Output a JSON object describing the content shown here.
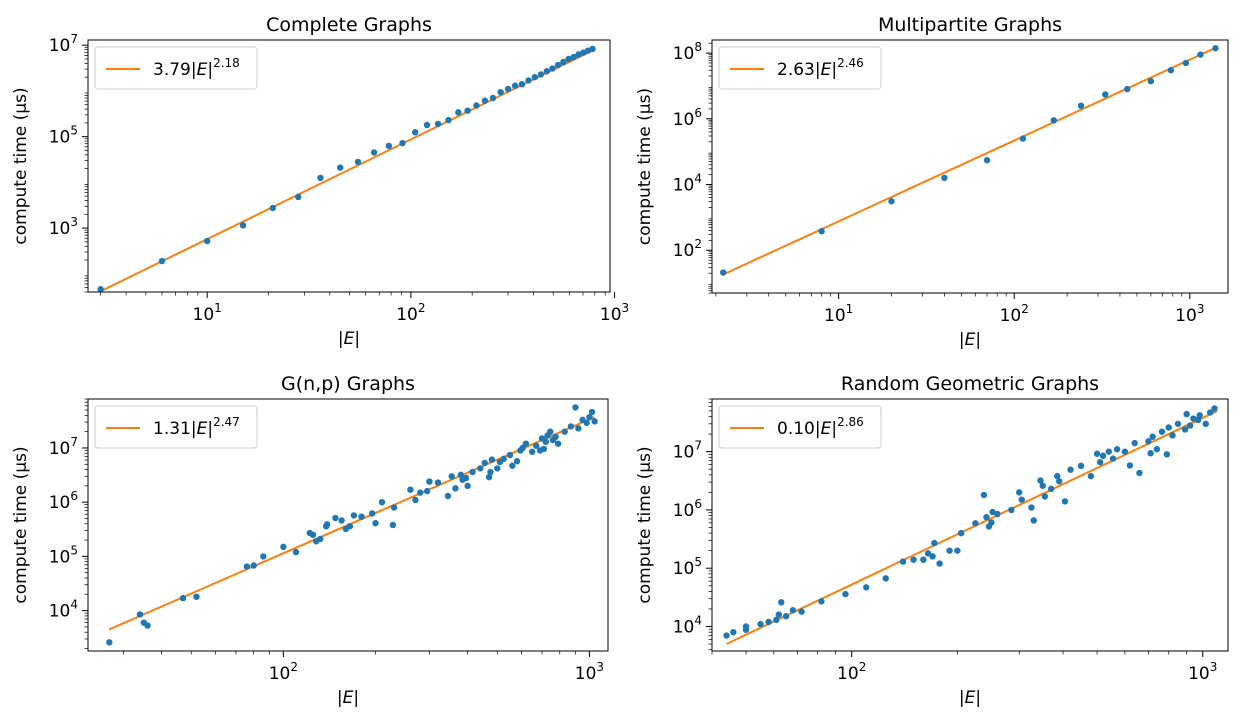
{
  "colors": {
    "points": "#1f77b4",
    "fit": "#ff7f0e",
    "background": "#ffffff",
    "axes": "#000000"
  },
  "chart_data": [
    {
      "type": "scatter",
      "title": "Complete Graphs",
      "xlabel": "|E|",
      "ylabel": "compute time (μs)",
      "xscale": "log",
      "yscale": "log",
      "xlim": [
        2.6,
        950
      ],
      "ylim": [
        40,
        13000000
      ],
      "xticks": [
        {
          "v": 10,
          "m": "10",
          "e": "1"
        },
        {
          "v": 100,
          "m": "10",
          "e": "2"
        },
        {
          "v": 1000,
          "m": "10",
          "e": "3"
        }
      ],
      "yticks": [
        {
          "v": 1000,
          "m": "10",
          "e": "3"
        },
        {
          "v": 100000,
          "m": "10",
          "e": "5"
        },
        {
          "v": 10000000,
          "m": "10",
          "e": "7"
        }
      ],
      "legend_position": "top-left",
      "fit": {
        "label_coef": "3.79|",
        "label_var": "E",
        "label_exp": "2.18",
        "a": 3.79,
        "b": 2.18,
        "x_range": [
          3,
          780
        ]
      },
      "points": [
        [
          3,
          46
        ],
        [
          6,
          190
        ],
        [
          10,
          520
        ],
        [
          15,
          1150
        ],
        [
          21,
          2750
        ],
        [
          28,
          4800
        ],
        [
          36,
          12500
        ],
        [
          45,
          21000
        ],
        [
          55,
          28000
        ],
        [
          66,
          45000
        ],
        [
          78,
          63000
        ],
        [
          91,
          72000
        ],
        [
          105,
          125000
        ],
        [
          120,
          180000
        ],
        [
          136,
          190000
        ],
        [
          153,
          230000
        ],
        [
          171,
          340000
        ],
        [
          190,
          370000
        ],
        [
          210,
          480000
        ],
        [
          231,
          610000
        ],
        [
          253,
          700000
        ],
        [
          276,
          940000
        ],
        [
          300,
          1100000
        ],
        [
          325,
          1300000
        ],
        [
          351,
          1400000
        ],
        [
          378,
          1700000
        ],
        [
          406,
          2000000
        ],
        [
          435,
          2300000
        ],
        [
          465,
          2700000
        ],
        [
          496,
          3100000
        ],
        [
          528,
          3700000
        ],
        [
          561,
          4300000
        ],
        [
          595,
          5000000
        ],
        [
          630,
          5500000
        ],
        [
          666,
          6300000
        ],
        [
          703,
          6900000
        ],
        [
          741,
          7600000
        ],
        [
          780,
          8300000
        ]
      ]
    },
    {
      "type": "scatter",
      "title": "Multipartite Graphs",
      "xlabel": "|E|",
      "ylabel": "compute time (μs)",
      "xscale": "log",
      "yscale": "log",
      "xlim": [
        1.9,
        1650
      ],
      "ylim": [
        5,
        250000000
      ],
      "xticks": [
        {
          "v": 10,
          "m": "10",
          "e": "1"
        },
        {
          "v": 100,
          "m": "10",
          "e": "2"
        },
        {
          "v": 1000,
          "m": "10",
          "e": "3"
        }
      ],
      "yticks": [
        {
          "v": 100,
          "m": "10",
          "e": "2"
        },
        {
          "v": 10000,
          "m": "10",
          "e": "4"
        },
        {
          "v": 1000000,
          "m": "10",
          "e": "6"
        },
        {
          "v": 100000000,
          "m": "10",
          "e": "8"
        }
      ],
      "legend_position": "top-left",
      "fit": {
        "label_coef": "2.63|",
        "label_var": "E",
        "label_exp": "2.46",
        "a": 2.63,
        "b": 2.46,
        "x_range": [
          2.2,
          1400
        ]
      },
      "points": [
        [
          2.2,
          21
        ],
        [
          8,
          380
        ],
        [
          20,
          3100
        ],
        [
          40,
          16000
        ],
        [
          70,
          55000
        ],
        [
          112,
          250000
        ],
        [
          168,
          900000
        ],
        [
          240,
          2500000
        ],
        [
          330,
          5500000
        ],
        [
          440,
          8000000
        ],
        [
          600,
          14000000
        ],
        [
          780,
          30000000
        ],
        [
          950,
          50000000
        ],
        [
          1150,
          90000000
        ],
        [
          1400,
          140000000
        ]
      ]
    },
    {
      "type": "scatter",
      "title": "G(n,p) Graphs",
      "xlabel": "|E|",
      "ylabel": "compute time (μs)",
      "xscale": "log",
      "yscale": "log",
      "xlim": [
        23,
        1150
      ],
      "ylim": [
        1800,
        80000000
      ],
      "xticks": [
        {
          "v": 100,
          "m": "10",
          "e": "2"
        },
        {
          "v": 1000,
          "m": "10",
          "e": "3"
        }
      ],
      "yticks": [
        {
          "v": 10000,
          "m": "10",
          "e": "4"
        },
        {
          "v": 100000,
          "m": "10",
          "e": "5"
        },
        {
          "v": 1000000,
          "m": "10",
          "e": "6"
        },
        {
          "v": 10000000,
          "m": "10",
          "e": "7"
        }
      ],
      "legend_position": "top-left",
      "fit": {
        "label_coef": "1.31|",
        "label_var": "E",
        "label_exp": "2.47",
        "a": 1.31,
        "b": 2.47,
        "x_range": [
          27,
          1040
        ]
      },
      "points": [
        [
          27,
          2600
        ],
        [
          34,
          8500
        ],
        [
          35,
          6000
        ],
        [
          36,
          5300
        ],
        [
          47,
          17000
        ],
        [
          52,
          18000
        ],
        [
          76,
          65000
        ],
        [
          80,
          68000
        ],
        [
          86,
          100000
        ],
        [
          100,
          150000
        ],
        [
          110,
          120000
        ],
        [
          122,
          270000
        ],
        [
          125,
          250000
        ],
        [
          128,
          190000
        ],
        [
          132,
          210000
        ],
        [
          138,
          360000
        ],
        [
          139,
          390000
        ],
        [
          148,
          510000
        ],
        [
          155,
          460000
        ],
        [
          160,
          320000
        ],
        [
          165,
          360000
        ],
        [
          170,
          570000
        ],
        [
          180,
          540000
        ],
        [
          195,
          620000
        ],
        [
          200,
          410000
        ],
        [
          210,
          1000000
        ],
        [
          228,
          380000
        ],
        [
          230,
          800000
        ],
        [
          260,
          1700000
        ],
        [
          270,
          1100000
        ],
        [
          280,
          1500000
        ],
        [
          295,
          1600000
        ],
        [
          300,
          2400000
        ],
        [
          320,
          2300000
        ],
        [
          345,
          1300000
        ],
        [
          355,
          3000000
        ],
        [
          365,
          1800000
        ],
        [
          380,
          3200000
        ],
        [
          385,
          2600000
        ],
        [
          395,
          2800000
        ],
        [
          400,
          2000000
        ],
        [
          415,
          3600000
        ],
        [
          440,
          4200000
        ],
        [
          455,
          5300000
        ],
        [
          470,
          2900000
        ],
        [
          475,
          3600000
        ],
        [
          480,
          6100000
        ],
        [
          500,
          4200000
        ],
        [
          510,
          5500000
        ],
        [
          525,
          6300000
        ],
        [
          550,
          7400000
        ],
        [
          560,
          4700000
        ],
        [
          580,
          5700000
        ],
        [
          595,
          9000000
        ],
        [
          605,
          10000000
        ],
        [
          620,
          12000000
        ],
        [
          650,
          8500000
        ],
        [
          670,
          11000000
        ],
        [
          690,
          9000000
        ],
        [
          700,
          15000000
        ],
        [
          710,
          9600000
        ],
        [
          720,
          13000000
        ],
        [
          730,
          17000000
        ],
        [
          745,
          20000000
        ],
        [
          760,
          14000000
        ],
        [
          775,
          16000000
        ],
        [
          790,
          12000000
        ],
        [
          830,
          20000000
        ],
        [
          870,
          25000000
        ],
        [
          900,
          56000000
        ],
        [
          920,
          23000000
        ],
        [
          950,
          33000000
        ],
        [
          980,
          29000000
        ],
        [
          1000,
          37000000
        ],
        [
          1020,
          46000000
        ],
        [
          1040,
          31000000
        ]
      ]
    },
    {
      "type": "scatter",
      "title": "Random Geometric Graphs",
      "xlabel": "|E|",
      "ylabel": "compute time (μs)",
      "xscale": "log",
      "yscale": "log",
      "xlim": [
        40,
        1180
      ],
      "ylim": [
        3800,
        80000000
      ],
      "xticks": [
        {
          "v": 100,
          "m": "10",
          "e": "2"
        },
        {
          "v": 1000,
          "m": "10",
          "e": "3"
        }
      ],
      "yticks": [
        {
          "v": 10000,
          "m": "10",
          "e": "4"
        },
        {
          "v": 100000,
          "m": "10",
          "e": "5"
        },
        {
          "v": 1000000,
          "m": "10",
          "e": "6"
        },
        {
          "v": 10000000,
          "m": "10",
          "e": "7"
        }
      ],
      "legend_position": "top-left",
      "fit": {
        "label_coef": "0.10|",
        "label_var": "E",
        "label_exp": "2.86",
        "a": 0.1,
        "b": 2.86,
        "x_range": [
          44,
          1100
        ]
      },
      "points": [
        [
          44,
          7000
        ],
        [
          46,
          8000
        ],
        [
          50,
          10000
        ],
        [
          50,
          8800
        ],
        [
          55,
          11000
        ],
        [
          58,
          12000
        ],
        [
          61,
          13000
        ],
        [
          62,
          16000
        ],
        [
          63,
          26000
        ],
        [
          65,
          15000
        ],
        [
          68,
          19000
        ],
        [
          72,
          18000
        ],
        [
          82,
          27000
        ],
        [
          96,
          36000
        ],
        [
          110,
          47000
        ],
        [
          125,
          67000
        ],
        [
          140,
          130000
        ],
        [
          150,
          140000
        ],
        [
          160,
          140000
        ],
        [
          165,
          180000
        ],
        [
          170,
          160000
        ],
        [
          172,
          270000
        ],
        [
          178,
          120000
        ],
        [
          190,
          200000
        ],
        [
          200,
          200000
        ],
        [
          205,
          400000
        ],
        [
          225,
          590000
        ],
        [
          238,
          1800000
        ],
        [
          242,
          750000
        ],
        [
          246,
          520000
        ],
        [
          250,
          610000
        ],
        [
          252,
          920000
        ],
        [
          260,
          850000
        ],
        [
          285,
          1000000
        ],
        [
          300,
          2000000
        ],
        [
          305,
          1500000
        ],
        [
          325,
          1100000
        ],
        [
          330,
          660000
        ],
        [
          345,
          3200000
        ],
        [
          350,
          2600000
        ],
        [
          355,
          1700000
        ],
        [
          370,
          2300000
        ],
        [
          385,
          3800000
        ],
        [
          390,
          3100000
        ],
        [
          405,
          1400000
        ],
        [
          420,
          4900000
        ],
        [
          450,
          5700000
        ],
        [
          480,
          3800000
        ],
        [
          500,
          9200000
        ],
        [
          510,
          6600000
        ],
        [
          520,
          8500000
        ],
        [
          540,
          10000000
        ],
        [
          555,
          7600000
        ],
        [
          570,
          11000000
        ],
        [
          600,
          10000000
        ],
        [
          620,
          5800000
        ],
        [
          640,
          14000000
        ],
        [
          660,
          4300000
        ],
        [
          700,
          15000000
        ],
        [
          710,
          9400000
        ],
        [
          720,
          18000000
        ],
        [
          740,
          11000000
        ],
        [
          765,
          22000000
        ],
        [
          790,
          9000000
        ],
        [
          800,
          26000000
        ],
        [
          820,
          19000000
        ],
        [
          850,
          30000000
        ],
        [
          890,
          24000000
        ],
        [
          900,
          44000000
        ],
        [
          920,
          28000000
        ],
        [
          940,
          37000000
        ],
        [
          970,
          35000000
        ],
        [
          980,
          42000000
        ],
        [
          1020,
          30000000
        ],
        [
          1050,
          47000000
        ],
        [
          1080,
          55000000
        ]
      ]
    }
  ]
}
